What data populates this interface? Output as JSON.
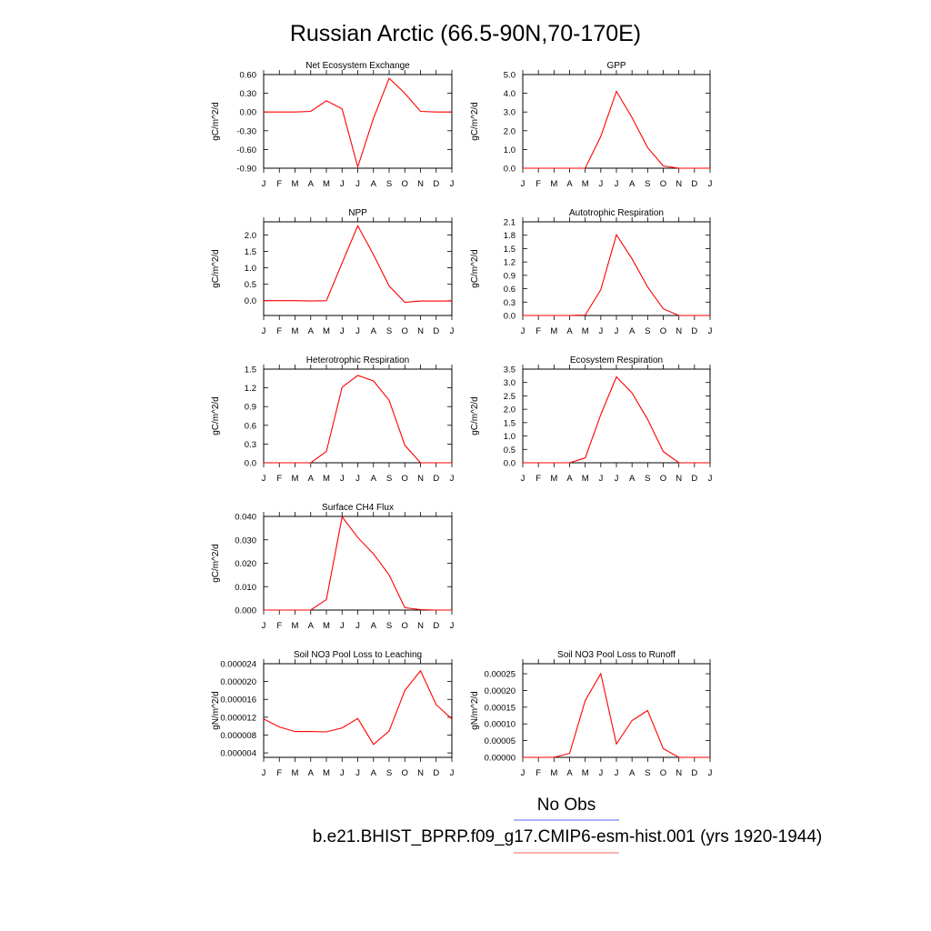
{
  "page": {
    "title": "Russian Arctic (66.5-90N,70-170E)",
    "legend": {
      "obs_label": "No Obs",
      "obs_color": "#8080ff",
      "model_label": "b.e21.BHIST_BPRP.f09_g17.CMIP6-esm-hist.001 (yrs 1920-1944)",
      "model_color": "#ff8080"
    }
  },
  "chart_data": [
    {
      "type": "line",
      "title": "Net Ecosystem Exchange",
      "ylabel": "gC/m^2/d",
      "ylim": [
        -0.9,
        0.6
      ],
      "yticks": [
        "-0.90",
        "-0.60",
        "-0.30",
        "0.00",
        "0.30",
        "0.60"
      ],
      "x": [
        "J",
        "F",
        "M",
        "A",
        "M",
        "J",
        "J",
        "A",
        "S",
        "O",
        "N",
        "D",
        "J"
      ],
      "series": [
        {
          "color": "#ff0000",
          "values": [
            0.0,
            0.0,
            0.0,
            0.01,
            0.18,
            0.05,
            -0.88,
            -0.1,
            0.54,
            0.3,
            0.01,
            0.0,
            0.0
          ]
        }
      ]
    },
    {
      "type": "line",
      "title": "GPP",
      "ylabel": "gC/m^2/d",
      "ylim": [
        0,
        5
      ],
      "yticks": [
        "0.0",
        "1.0",
        "2.0",
        "3.0",
        "4.0",
        "5.0"
      ],
      "x": [
        "J",
        "F",
        "M",
        "A",
        "M",
        "J",
        "J",
        "A",
        "S",
        "O",
        "N",
        "D",
        "J"
      ],
      "series": [
        {
          "color": "#ff0000",
          "values": [
            0.0,
            0.0,
            0.0,
            0.0,
            0.0,
            1.7,
            4.1,
            2.7,
            1.1,
            0.12,
            0.0,
            0.0,
            0.0
          ]
        }
      ]
    },
    {
      "type": "line",
      "title": "NPP",
      "ylabel": "gC/m^2/d",
      "ylim": [
        -0.45,
        2.4
      ],
      "yticks": [
        "0.0",
        "0.5",
        "1.0",
        "1.5",
        "2.0"
      ],
      "x": [
        "J",
        "F",
        "M",
        "A",
        "M",
        "J",
        "J",
        "A",
        "S",
        "O",
        "N",
        "D",
        "J"
      ],
      "series": [
        {
          "color": "#ff0000",
          "values": [
            0.0,
            0.0,
            0.0,
            -0.01,
            0.0,
            1.15,
            2.28,
            1.4,
            0.45,
            -0.05,
            -0.01,
            -0.01,
            -0.01
          ]
        }
      ]
    },
    {
      "type": "line",
      "title": "Autotrophic Respiration",
      "ylabel": "gC/m^2/d",
      "ylim": [
        0,
        2.1
      ],
      "yticks": [
        "0.0",
        "0.3",
        "0.6",
        "0.9",
        "1.2",
        "1.5",
        "1.8",
        "2.1"
      ],
      "x": [
        "J",
        "F",
        "M",
        "A",
        "M",
        "J",
        "J",
        "A",
        "S",
        "O",
        "N",
        "D",
        "J"
      ],
      "series": [
        {
          "color": "#ff0000",
          "values": [
            0.0,
            0.0,
            0.0,
            0.0,
            0.01,
            0.58,
            1.81,
            1.27,
            0.64,
            0.15,
            0.0,
            0.0,
            0.0
          ]
        }
      ]
    },
    {
      "type": "line",
      "title": "Heterotrophic Respiration",
      "ylabel": "gC/m^2/d",
      "ylim": [
        0,
        1.5
      ],
      "yticks": [
        "0.0",
        "0.3",
        "0.6",
        "0.9",
        "1.2",
        "1.5"
      ],
      "x": [
        "J",
        "F",
        "M",
        "A",
        "M",
        "J",
        "J",
        "A",
        "S",
        "O",
        "N",
        "D",
        "J"
      ],
      "series": [
        {
          "color": "#ff0000",
          "values": [
            0.0,
            0.0,
            0.0,
            0.0,
            0.18,
            1.21,
            1.4,
            1.31,
            1.0,
            0.28,
            0.0,
            0.0,
            0.0
          ]
        }
      ]
    },
    {
      "type": "line",
      "title": "Ecosystem Respiration",
      "ylabel": "gC/m^2/d",
      "ylim": [
        0,
        3.5
      ],
      "yticks": [
        "0.0",
        "0.5",
        "1.0",
        "1.5",
        "2.0",
        "2.5",
        "3.0",
        "3.5"
      ],
      "x": [
        "J",
        "F",
        "M",
        "A",
        "M",
        "J",
        "J",
        "A",
        "S",
        "O",
        "N",
        "D",
        "J"
      ],
      "series": [
        {
          "color": "#ff0000",
          "values": [
            0.0,
            0.0,
            0.0,
            0.0,
            0.18,
            1.8,
            3.21,
            2.61,
            1.62,
            0.42,
            0.0,
            0.0,
            0.0
          ]
        }
      ]
    },
    {
      "type": "line",
      "title": "Surface CH4 Flux",
      "ylabel": "gC/m^2/d",
      "ylim": [
        0,
        0.04
      ],
      "yticks": [
        "0.000",
        "0.010",
        "0.020",
        "0.030",
        "0.040"
      ],
      "x": [
        "J",
        "F",
        "M",
        "A",
        "M",
        "J",
        "J",
        "A",
        "S",
        "O",
        "N",
        "D",
        "J"
      ],
      "series": [
        {
          "color": "#ff0000",
          "values": [
            0.0,
            0.0,
            0.0,
            0.0,
            0.0045,
            0.0398,
            0.031,
            0.024,
            0.015,
            0.001,
            0.0002,
            0.0,
            0.0
          ]
        }
      ]
    },
    null,
    {
      "type": "line",
      "title": "Soil NO3 Pool Loss to Leaching",
      "ylabel": "gN/m^2/d",
      "ylim": [
        3e-06,
        2.4e-05
      ],
      "yticks": [
        "0.000004",
        "0.000008",
        "0.000012",
        "0.000016",
        "0.000020",
        "0.000024"
      ],
      "x": [
        "J",
        "F",
        "M",
        "A",
        "M",
        "J",
        "J",
        "A",
        "S",
        "O",
        "N",
        "D",
        "J"
      ],
      "series": [
        {
          "color": "#ff0000",
          "values": [
            1.16e-05,
            9.8e-06,
            8.8e-06,
            8.8e-06,
            8.7e-06,
            9.6e-06,
            1.17e-05,
            5.9e-06,
            8.9e-06,
            1.8e-05,
            2.24e-05,
            1.48e-05,
            1.16e-05
          ]
        }
      ]
    },
    {
      "type": "line",
      "title": "Soil NO3 Pool Loss to Runoff",
      "ylabel": "gN/m^2/d",
      "ylim": [
        0,
        0.00028
      ],
      "yticks": [
        "0.00000",
        "0.00005",
        "0.00010",
        "0.00015",
        "0.00020",
        "0.00025"
      ],
      "x": [
        "J",
        "F",
        "M",
        "A",
        "M",
        "J",
        "J",
        "A",
        "S",
        "O",
        "N",
        "D",
        "J"
      ],
      "series": [
        {
          "color": "#ff0000",
          "values": [
            0.0,
            0.0,
            0.0,
            1.2e-05,
            0.00017,
            0.00025,
            4e-05,
            0.00011,
            0.00014,
            2.6e-05,
            0.0,
            0.0,
            0.0
          ]
        }
      ]
    }
  ]
}
